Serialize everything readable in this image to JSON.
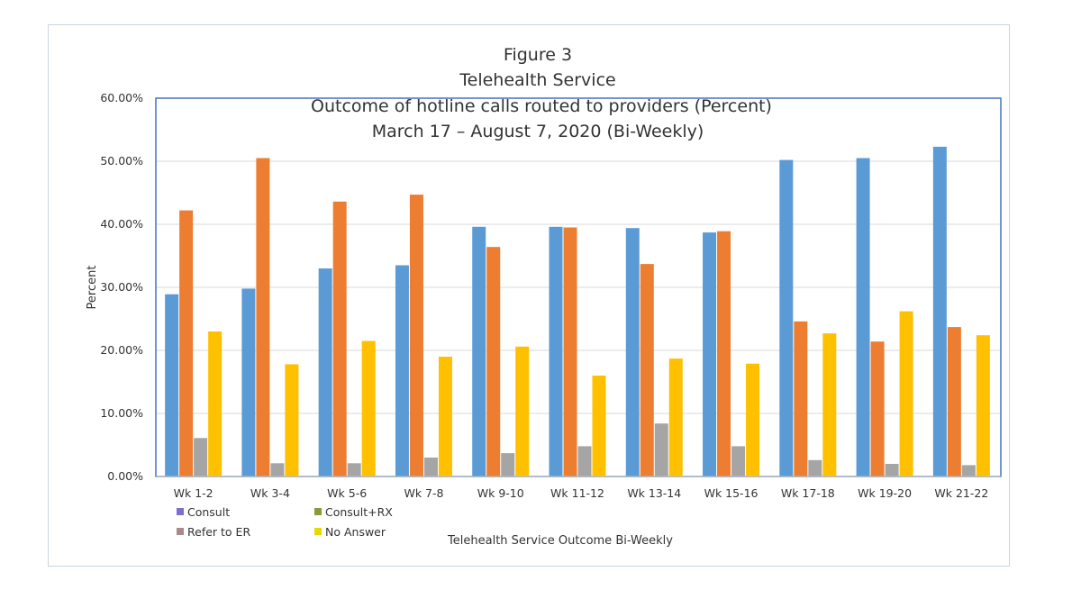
{
  "chart_data": {
    "type": "bar",
    "title_lines": [
      "Figure 3",
      "Telehealth Service",
      "Outcome of hotline calls routed to providers (Percent)",
      "March 17 – August 7, 2020 (Bi-Weekly)"
    ],
    "xlabel": "Telehealth Service Outcome Bi-Weekly",
    "ylabel": "Percent",
    "ylim": [
      0,
      60
    ],
    "yticks": [
      "0.00%",
      "10.00%",
      "20.00%",
      "30.00%",
      "40.00%",
      "50.00%",
      "60.00%"
    ],
    "categories": [
      "Wk 1-2",
      "Wk 3-4",
      "Wk 5-6",
      "Wk 7-8",
      "Wk 9-10",
      "Wk 11-12",
      "Wk 13-14",
      "Wk 15-16",
      "Wk 17-18",
      "Wk 19-20",
      "Wk 21-22"
    ],
    "series": [
      {
        "name": "Consult",
        "color": "#5b9bd5",
        "legend_color": "#7b6fd0",
        "values": [
          28.9,
          29.8,
          33.0,
          33.5,
          39.6,
          39.6,
          39.4,
          38.7,
          50.2,
          50.5,
          52.3
        ]
      },
      {
        "name": "Consult+RX",
        "color": "#ed7d31",
        "legend_color": "#8a9a3a",
        "values": [
          42.2,
          50.5,
          43.6,
          44.7,
          36.4,
          39.5,
          33.7,
          38.9,
          24.6,
          21.4,
          23.7
        ]
      },
      {
        "name": "Refer to ER",
        "color": "#a5a5a5",
        "legend_color": "#a88a8a",
        "values": [
          6.1,
          2.1,
          2.1,
          3.0,
          3.7,
          4.8,
          8.4,
          4.8,
          2.6,
          2.0,
          1.8
        ]
      },
      {
        "name": "No Answer",
        "color": "#ffc000",
        "legend_color": "#e6d800",
        "values": [
          23.0,
          17.8,
          21.5,
          19.0,
          20.6,
          16.0,
          18.7,
          17.9,
          22.7,
          26.2,
          22.4
        ]
      }
    ],
    "grid": true,
    "legend_position": "bottom-left"
  }
}
